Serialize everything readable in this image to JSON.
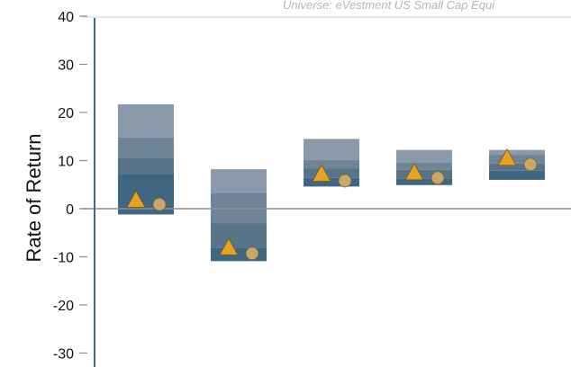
{
  "chart_data": {
    "type": "floating-bar",
    "subtitle": "Universe: eVestment US Small Cap Equi",
    "ylabel": "Rate of Return",
    "ylim": [
      -30,
      40
    ],
    "yticks": [
      40,
      30,
      20,
      10,
      0,
      -10,
      -20,
      -30
    ],
    "yticklabels": [
      "40",
      "30",
      "20",
      "10",
      "0",
      "-10",
      "-20",
      "-30"
    ],
    "grid": false,
    "band_colors": [
      "#8a9aab",
      "#708498",
      "#587489",
      "#3f6781"
    ],
    "marker_colors": {
      "triangle": "#e6a323",
      "circle": "#c8a869"
    },
    "periods": [
      {
        "bands": [
          21.7,
          14.8,
          10.6,
          7.1,
          -1.2
        ],
        "triangle": 1.8,
        "circle": 0.9
      },
      {
        "bands": [
          8.2,
          3.3,
          -3.0,
          -8.1,
          -10.9
        ],
        "triangle": -8.1,
        "circle": -9.3
      },
      {
        "bands": [
          14.5,
          10.1,
          8.4,
          6.4,
          4.6
        ],
        "triangle": 7.2,
        "circle": 5.8
      },
      {
        "bands": [
          12.2,
          9.6,
          8.1,
          6.3,
          4.9
        ],
        "triangle": 7.5,
        "circle": 6.4
      },
      {
        "bands": [
          12.2,
          11.2,
          9.4,
          7.9,
          6.0
        ],
        "triangle": 10.5,
        "circle": 9.2
      }
    ]
  }
}
